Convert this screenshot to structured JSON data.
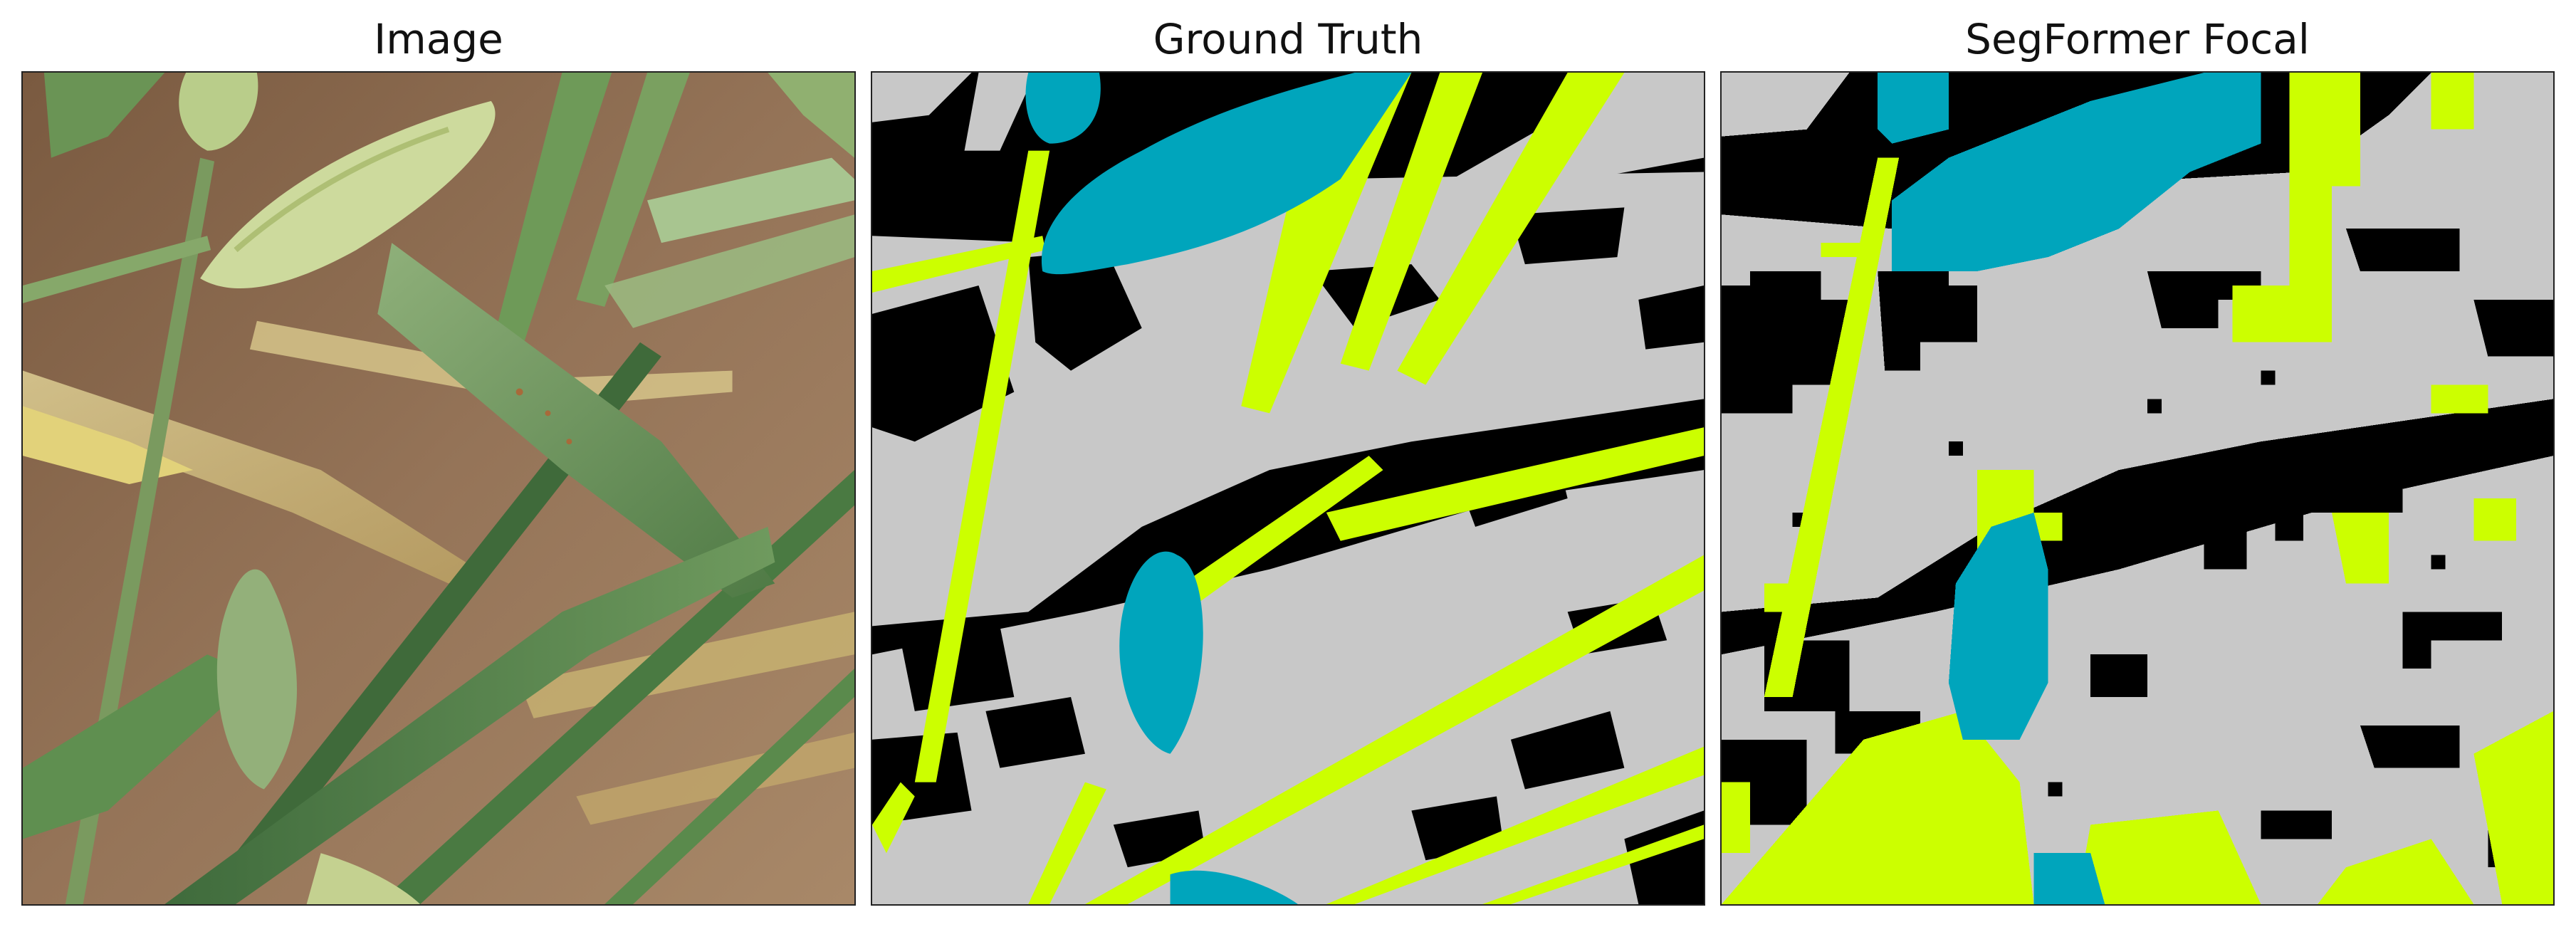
{
  "figure": {
    "panels": [
      {
        "title": "Image"
      },
      {
        "title": "Ground Truth"
      },
      {
        "title": "SegFormer Focal"
      }
    ]
  },
  "colors": {
    "background": "#000000",
    "plant": "#c8c8c8",
    "stem": "#ccff00",
    "head": "#00a5bc",
    "soil": "#8a6a4e",
    "leaf": "#6a8f55",
    "wheat_head": "#cbd89a"
  }
}
